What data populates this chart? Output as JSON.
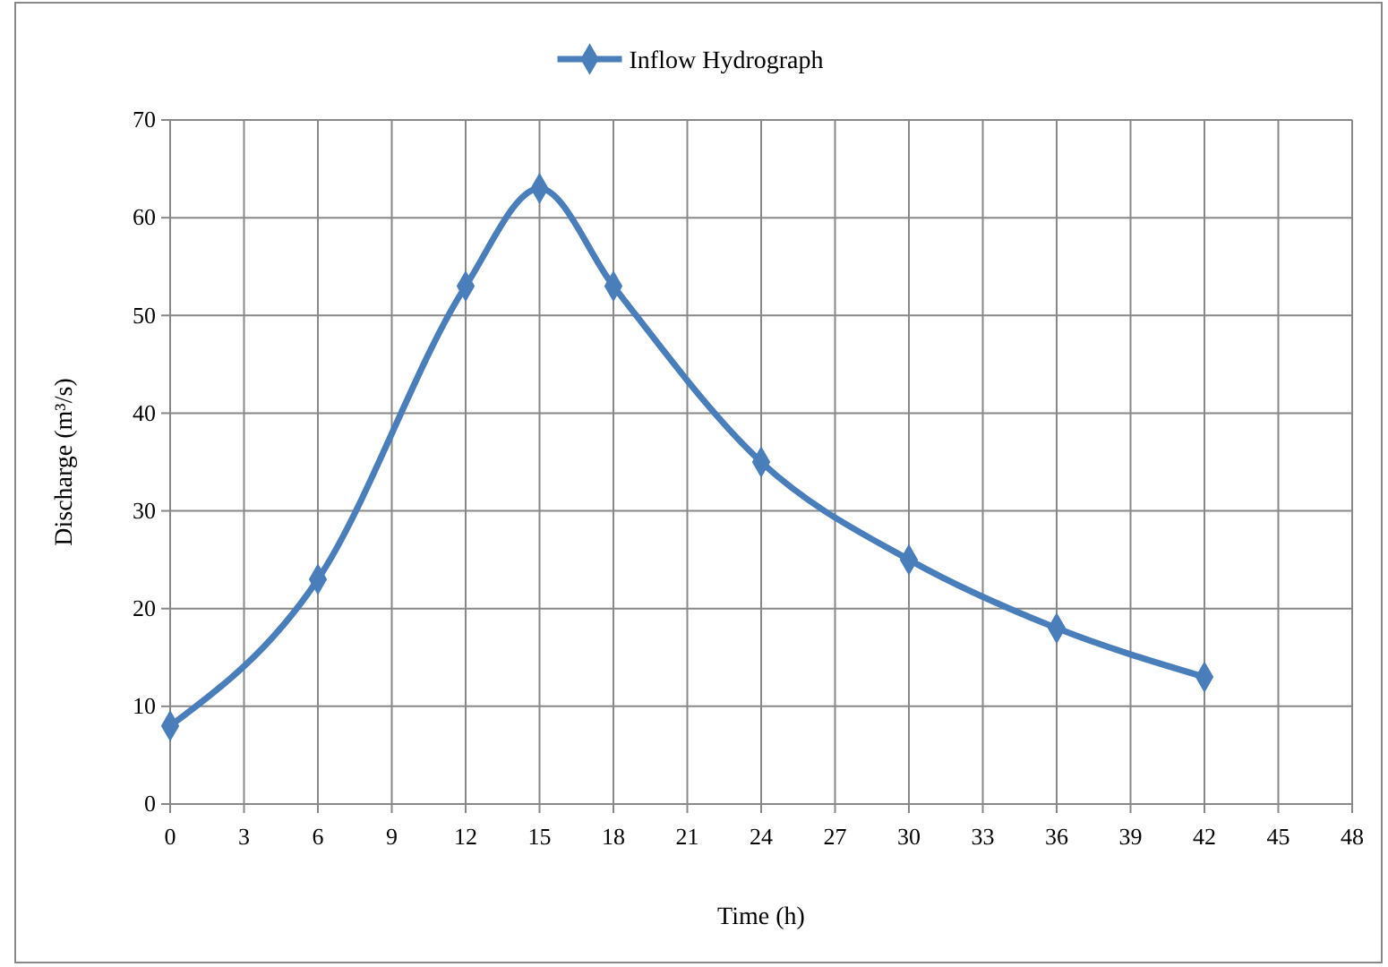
{
  "chart_data": {
    "type": "line",
    "xlabel": "Time (h)",
    "ylabel": "Discharge (m³/s)",
    "series": [
      {
        "name": "Inflow Hydrograph",
        "color": "#4a7ebb",
        "x": [
          0,
          6,
          12,
          15,
          18,
          24,
          30,
          36,
          42
        ],
        "values": [
          8,
          23,
          53,
          63,
          53,
          35,
          25,
          18,
          13
        ]
      }
    ],
    "xlim": [
      0,
      48
    ],
    "xticks": [
      0,
      3,
      6,
      9,
      12,
      15,
      18,
      21,
      24,
      27,
      30,
      33,
      36,
      39,
      42,
      45,
      48
    ],
    "ylim": [
      0,
      70
    ],
    "yticks": [
      0,
      10,
      20,
      30,
      40,
      50,
      60,
      70
    ],
    "grid": true,
    "legend": "top",
    "marker": "diamond",
    "line_style": "solid"
  }
}
